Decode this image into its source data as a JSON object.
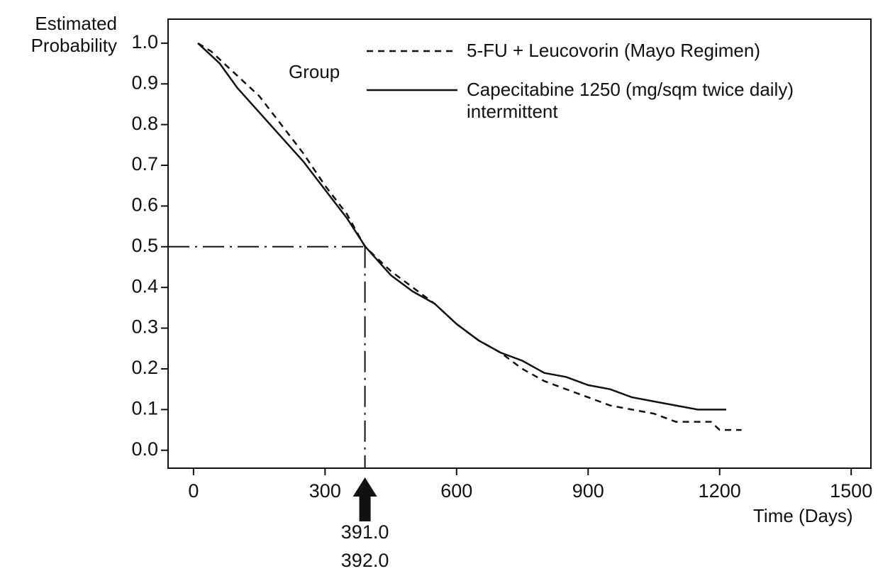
{
  "chart_data": {
    "type": "line",
    "y_label": "Estimated Probability",
    "x_label": "Time (Days)",
    "legend_title": "Group",
    "xlim": [
      -58,
      1545
    ],
    "ylim": [
      -0.044,
      1.059
    ],
    "xticks": [
      0,
      300,
      600,
      900,
      1200,
      1500
    ],
    "yticks": [
      {
        "value": 0,
        "label": "0.0"
      },
      0.1,
      0.2,
      0.3,
      0.4,
      0.5,
      0.6,
      0.7,
      0.8,
      0.9,
      {
        "value": 1,
        "label": "1.0"
      }
    ],
    "reference_y": 0.5,
    "annotations": [
      {
        "value": 391,
        "label": "391.0"
      },
      {
        "value": 392,
        "label": "392.0"
      }
    ],
    "series": [
      {
        "name": "5-FU + Leucovorin (Mayo Regimen)",
        "color": "#111111",
        "dash": "dashed",
        "x": [
          10,
          40,
          60,
          100,
          150,
          200,
          250,
          300,
          350,
          391,
          450,
          500,
          550,
          600,
          650,
          700,
          750,
          800,
          850,
          900,
          950,
          1000,
          1050,
          1100,
          1180,
          1200,
          1250
        ],
        "values": [
          1.0,
          0.98,
          0.96,
          0.92,
          0.87,
          0.8,
          0.73,
          0.65,
          0.58,
          0.5,
          0.44,
          0.4,
          0.36,
          0.31,
          0.27,
          0.24,
          0.2,
          0.17,
          0.15,
          0.13,
          0.11,
          0.1,
          0.09,
          0.07,
          0.07,
          0.05,
          0.05
        ]
      },
      {
        "name": "Capecitabine 1250 (mg/sqm twice daily) intermittent",
        "color": "#111111",
        "dash": "solid",
        "x": [
          10,
          40,
          60,
          100,
          150,
          200,
          250,
          300,
          350,
          392,
          450,
          500,
          550,
          600,
          650,
          700,
          750,
          800,
          850,
          900,
          950,
          1000,
          1050,
          1100,
          1150,
          1215
        ],
        "values": [
          1.0,
          0.97,
          0.95,
          0.89,
          0.83,
          0.77,
          0.71,
          0.64,
          0.57,
          0.5,
          0.43,
          0.39,
          0.36,
          0.31,
          0.27,
          0.24,
          0.22,
          0.19,
          0.18,
          0.16,
          0.15,
          0.13,
          0.12,
          0.11,
          0.1,
          0.1
        ]
      }
    ]
  }
}
